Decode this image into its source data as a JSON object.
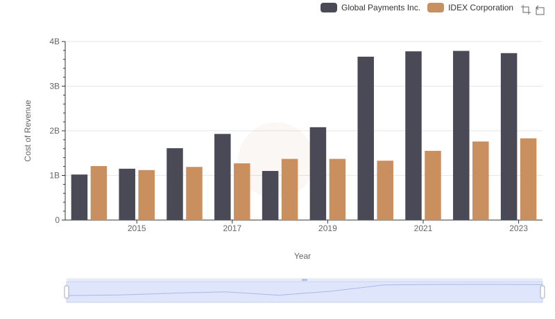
{
  "colors": {
    "series1": "#4a4a56",
    "series2": "#c98f5f",
    "grid": "#e6e6e6",
    "axis": "#333333",
    "text": "#666666",
    "zoomFill": "#dfe6fb",
    "zoomLine": "#a9b7e6",
    "zoomBorder": "#c7d1f2"
  },
  "legend": {
    "items": [
      {
        "name": "Global Payments Inc.",
        "color": "#4a4a56"
      },
      {
        "name": "IDEX Corporation",
        "color": "#c98f5f"
      }
    ]
  },
  "toolbox": {
    "icons": [
      "zoom-icon",
      "restore-icon"
    ]
  },
  "chart_data": {
    "type": "bar",
    "categories": [
      "2014",
      "2015",
      "2016",
      "2017",
      "2018",
      "2019",
      "2020",
      "2021",
      "2022",
      "2023"
    ],
    "x_tick_labels": [
      "2015",
      "2017",
      "2019",
      "2021",
      "2023"
    ],
    "series": [
      {
        "name": "Global Payments Inc.",
        "values": [
          1.02,
          1.15,
          1.61,
          1.93,
          1.1,
          2.08,
          3.66,
          3.78,
          3.79,
          3.74
        ]
      },
      {
        "name": "IDEX Corporation",
        "values": [
          1.21,
          1.12,
          1.19,
          1.27,
          1.37,
          1.37,
          1.33,
          1.55,
          1.76,
          1.83
        ]
      }
    ],
    "xlabel": "Year",
    "ylabel": "Cost of Revenue",
    "ylim": [
      0,
      4
    ],
    "y_ticks": [
      0,
      1,
      2,
      3,
      4
    ],
    "y_tick_labels": [
      "0",
      "1B",
      "2B",
      "3B",
      "4B"
    ],
    "unit": "billions",
    "grid": true,
    "legend_position": "top-right",
    "data_zoom": {
      "range_start_percent": 0,
      "range_end_percent": 100
    }
  }
}
